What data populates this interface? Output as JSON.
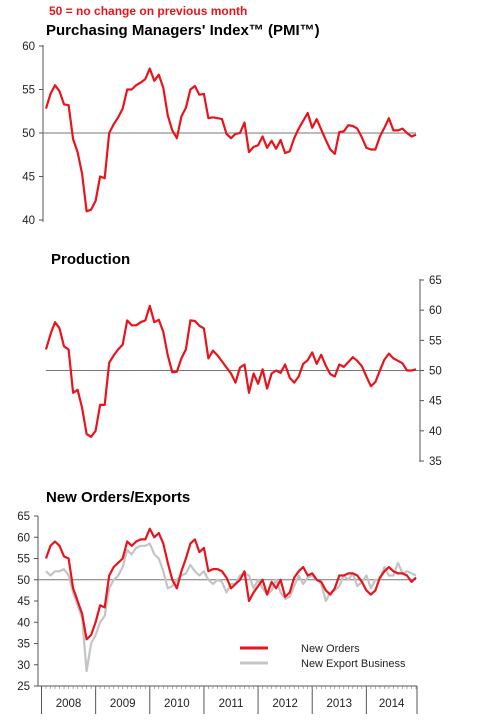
{
  "note": "50 =  no change on previous month",
  "colors": {
    "red": "#e8141b",
    "grey": "#c4c4c4",
    "axis": "#555555",
    "ref": "#777777"
  },
  "chart_data": [
    {
      "type": "line",
      "title": "Purchasing Managers' Index™ (PMI™)",
      "ylim": [
        40,
        60
      ],
      "yticks": [
        40,
        45,
        50,
        55,
        60
      ],
      "yaxis": "left",
      "reference_line": 50,
      "series": [
        {
          "color": "#e8141b",
          "values": [
            52.8,
            54.5,
            55.5,
            54.8,
            53.3,
            53.2,
            49.3,
            47.8,
            45.3,
            41.0,
            41.2,
            42.2,
            45.0,
            44.8,
            50.0,
            51.0,
            51.8,
            52.8,
            55.0,
            55.0,
            55.5,
            55.8,
            56.2,
            57.4,
            56.0,
            56.7,
            55.2,
            52.0,
            50.3,
            49.4,
            51.9,
            52.9,
            55.0,
            55.4,
            54.4,
            54.5,
            51.7,
            51.8,
            51.7,
            51.6,
            49.9,
            49.4,
            49.9,
            50.0,
            51.2,
            47.8,
            48.4,
            48.6,
            49.6,
            48.3,
            49.1,
            48.2,
            49.2,
            47.7,
            47.9,
            49.4,
            50.5,
            51.4,
            52.3,
            50.6,
            51.6,
            50.4,
            49.2,
            48.1,
            47.6,
            50.1,
            50.2,
            50.9,
            50.8,
            50.5,
            49.5,
            48.3,
            48.1,
            48.1,
            49.6,
            50.6,
            51.7,
            50.3,
            50.3,
            50.5,
            50.0,
            49.6,
            49.8
          ]
        }
      ]
    },
    {
      "type": "line",
      "title": "Production",
      "ylim": [
        35,
        65
      ],
      "yticks": [
        35,
        40,
        45,
        50,
        55,
        60,
        65
      ],
      "yaxis": "right",
      "reference_line": 50,
      "series": [
        {
          "color": "#e8141b",
          "values": [
            53.5,
            56.0,
            58.0,
            57.0,
            54.0,
            53.5,
            46.3,
            46.8,
            43.8,
            39.5,
            39.0,
            40.0,
            44.3,
            44.3,
            51.3,
            52.5,
            53.5,
            54.3,
            58.3,
            57.5,
            57.5,
            58.0,
            58.3,
            60.7,
            58.0,
            58.4,
            56.4,
            52.5,
            49.7,
            49.8,
            52.0,
            53.5,
            58.3,
            58.2,
            57.4,
            57.0,
            52.0,
            53.3,
            52.5,
            51.5,
            50.5,
            49.5,
            48.0,
            50.5,
            51.0,
            46.3,
            49.5,
            47.8,
            50.2,
            47.0,
            49.5,
            50.0,
            49.6,
            51.0,
            48.8,
            48.0,
            49.0,
            51.1,
            51.7,
            53.0,
            51.1,
            52.6,
            50.8,
            49.4,
            49.0,
            51.0,
            50.6,
            51.4,
            52.2,
            51.6,
            50.7,
            49.0,
            47.4,
            48.1,
            50.0,
            51.8,
            52.8,
            52.0,
            51.6,
            51.2,
            50.0,
            50.0,
            50.2
          ]
        }
      ]
    },
    {
      "type": "line",
      "title": "New Orders/Exports",
      "ylim": [
        25,
        65
      ],
      "yticks": [
        25,
        30,
        35,
        40,
        45,
        50,
        55,
        60,
        65
      ],
      "yaxis": "left",
      "reference_line": 50,
      "xticks": [
        "2008",
        "2009",
        "2010",
        "2011",
        "2012",
        "2013",
        "2014"
      ],
      "legend_position": "bottom-right",
      "series": [
        {
          "name": "New Orders",
          "color": "#e8141b",
          "values": [
            55.0,
            58.0,
            59.0,
            58.0,
            55.5,
            55.0,
            48.0,
            45.0,
            42.0,
            36.0,
            37.0,
            40.0,
            44.0,
            43.5,
            51.0,
            53.0,
            54.0,
            55.0,
            59.0,
            58.0,
            59.0,
            59.5,
            59.5,
            62.0,
            60.0,
            61.0,
            58.5,
            54.0,
            50.0,
            48.0,
            52.0,
            55.0,
            58.5,
            59.5,
            56.5,
            57.5,
            52.0,
            52.5,
            52.5,
            52.0,
            50.5,
            48.0,
            49.0,
            50.0,
            52.0,
            45.0,
            47.0,
            48.5,
            50.0,
            46.5,
            49.5,
            48.0,
            50.0,
            46.0,
            47.0,
            50.5,
            52.0,
            53.0,
            51.0,
            51.5,
            50.0,
            49.5,
            47.5,
            46.5,
            48.0,
            51.0,
            51.0,
            51.5,
            51.5,
            51.0,
            49.5,
            47.5,
            46.5,
            47.5,
            50.5,
            52.0,
            53.0,
            52.0,
            51.5,
            51.5,
            51.0,
            49.5,
            50.5
          ]
        },
        {
          "name": "New Export Business",
          "color": "#c4c4c4",
          "values": [
            52.0,
            51.0,
            52.0,
            52.0,
            52.5,
            51.0,
            47.0,
            44.0,
            41.0,
            28.5,
            35.0,
            37.0,
            40.0,
            41.5,
            48.0,
            50.0,
            51.0,
            53.0,
            57.0,
            56.0,
            57.5,
            58.0,
            58.0,
            58.5,
            56.0,
            55.0,
            52.0,
            48.0,
            48.5,
            50.0,
            51.0,
            51.5,
            53.5,
            52.0,
            51.0,
            52.0,
            50.0,
            49.0,
            50.0,
            49.5,
            47.0,
            49.0,
            49.0,
            51.0,
            51.5,
            51.0,
            48.0,
            50.0,
            48.0,
            46.5,
            47.5,
            50.0,
            47.0,
            45.5,
            46.0,
            48.5,
            51.0,
            49.0,
            50.5,
            51.0,
            50.0,
            49.0,
            45.0,
            47.0,
            47.5,
            48.5,
            51.0,
            50.0,
            51.5,
            48.5,
            49.5,
            51.0,
            48.0,
            50.0,
            50.0,
            53.0,
            51.0,
            51.0,
            54.0,
            51.5,
            52.0,
            51.5,
            51.0
          ]
        }
      ]
    }
  ]
}
